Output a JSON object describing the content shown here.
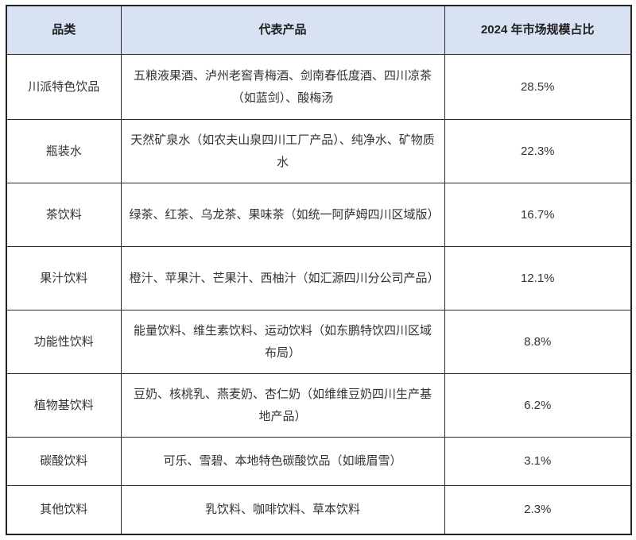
{
  "colors": {
    "header_bg": "#d9e2f3",
    "border": "#2b2b2b",
    "text": "#333333"
  },
  "table": {
    "headers": {
      "category": "品类",
      "products": "代表产品",
      "share": "2024 年市场规模占比"
    },
    "rows": [
      {
        "category": "川派特色饮品",
        "products": "五粮液果酒、泸州老窖青梅酒、剑南春低度酒、四川凉茶（如蓝剑）、酸梅汤",
        "share": "28.5%"
      },
      {
        "category": "瓶装水",
        "products": "天然矿泉水（如农夫山泉四川工厂产品）、纯净水、矿物质水",
        "share": "22.3%"
      },
      {
        "category": "茶饮料",
        "products": "绿茶、红茶、乌龙茶、果味茶（如统一阿萨姆四川区域版）",
        "share": "16.7%"
      },
      {
        "category": "果汁饮料",
        "products": "橙汁、苹果汁、芒果汁、西柚汁（如汇源四川分公司产品）",
        "share": "12.1%"
      },
      {
        "category": "功能性饮料",
        "products": "能量饮料、维生素饮料、运动饮料（如东鹏特饮四川区域布局）",
        "share": "8.8%"
      },
      {
        "category": "植物基饮料",
        "products": "豆奶、核桃乳、燕麦奶、杏仁奶（如维维豆奶四川生产基地产品）",
        "share": "6.2%"
      },
      {
        "category": "碳酸饮料",
        "products": "可乐、雪碧、本地特色碳酸饮品（如峨眉雪）",
        "share": "3.1%"
      },
      {
        "category": "其他饮料",
        "products": "乳饮料、咖啡饮料、草本饮料",
        "share": "2.3%"
      }
    ]
  }
}
